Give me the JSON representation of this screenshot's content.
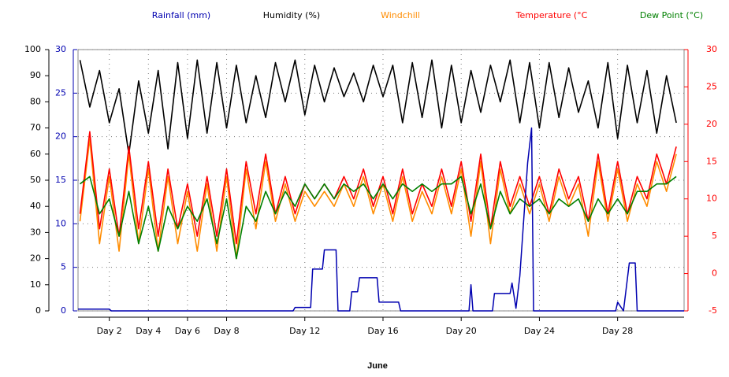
{
  "chart_data": {
    "type": "line",
    "xlabel": "June",
    "x": [
      0.5,
      1,
      1.5,
      2,
      2.5,
      3,
      3.5,
      4,
      4.5,
      5,
      5.5,
      6,
      6.5,
      7,
      7.5,
      8,
      8.5,
      9,
      9.5,
      10,
      10.5,
      11,
      11.5,
      12,
      12.5,
      13,
      13.5,
      14,
      14.5,
      15,
      15.5,
      16,
      16.5,
      17,
      17.5,
      18,
      18.5,
      19,
      19.5,
      20,
      20.5,
      21,
      21.5,
      22,
      22.5,
      23,
      23.5,
      24,
      24.5,
      25,
      25.5,
      26,
      26.5,
      27,
      27.5,
      28,
      28.5,
      29,
      29.5,
      30,
      30.5,
      31
    ],
    "xlim": [
      0.4,
      31.4
    ],
    "xticks": [
      {
        "value": 2,
        "label": "Day 2"
      },
      {
        "value": 4,
        "label": "Day 4"
      },
      {
        "value": 6,
        "label": "Day 6"
      },
      {
        "value": 8,
        "label": "Day 8"
      },
      {
        "value": 12,
        "label": "Day 12"
      },
      {
        "value": 16,
        "label": "Day 16"
      },
      {
        "value": 20,
        "label": "Day 20"
      },
      {
        "value": 24,
        "label": "Day 24"
      },
      {
        "value": 28,
        "label": "Day 28"
      }
    ],
    "ylim": [
      0,
      100
    ],
    "yticks": [
      0,
      10,
      20,
      30,
      40,
      50,
      60,
      70,
      80,
      90,
      100
    ],
    "y2lim": [
      -5,
      30
    ],
    "y2ticks": [
      -5,
      0,
      5,
      10,
      15,
      20,
      25,
      30
    ],
    "y3lim": [
      0,
      30
    ],
    "y3ticks": [
      0,
      5,
      10,
      15,
      20,
      25,
      30
    ],
    "grid": true,
    "series": [
      {
        "name": "Rainfall (mm)",
        "color": "#0000b0",
        "axis": "y3",
        "x": [
          0.4,
          2.0,
          2.1,
          11.4,
          11.5,
          12.3,
          12.4,
          12.9,
          13.0,
          13.6,
          13.7,
          14.3,
          14.4,
          14.7,
          14.8,
          15.7,
          15.8,
          16.8,
          16.9,
          20.4,
          20.5,
          20.6,
          21.6,
          21.7,
          22.5,
          22.6,
          22.8,
          23.0,
          23.4,
          23.6,
          23.7,
          27.9,
          28.0,
          28.3,
          28.6,
          28.9,
          29.0,
          31.4
        ],
        "values": [
          0.2,
          0.2,
          0,
          0,
          0.4,
          0.4,
          4.8,
          4.8,
          7,
          7,
          0,
          0,
          2.2,
          2.2,
          3.8,
          3.8,
          1,
          1,
          0,
          0,
          3,
          0,
          0,
          2,
          2,
          3.2,
          0.3,
          4,
          17,
          21,
          0,
          0,
          1,
          0,
          5.5,
          5.5,
          0,
          0
        ]
      },
      {
        "name": "Humidity (%)",
        "color": "#000000",
        "axis": "y",
        "values": [
          96,
          78,
          92,
          72,
          85,
          60,
          88,
          68,
          92,
          62,
          95,
          66,
          96,
          68,
          95,
          70,
          94,
          72,
          90,
          74,
          95,
          80,
          96,
          75,
          94,
          80,
          93,
          82,
          91,
          80,
          94,
          82,
          94,
          72,
          95,
          74,
          96,
          70,
          94,
          72,
          92,
          76,
          94,
          80,
          96,
          72,
          95,
          70,
          95,
          74,
          93,
          76,
          88,
          70,
          95,
          66,
          94,
          72,
          92,
          68,
          90,
          72
        ]
      },
      {
        "name": "Windchill",
        "color": "#ff8c00",
        "axis": "y2",
        "values": [
          7,
          18,
          4,
          13,
          3,
          16,
          4,
          14,
          3,
          13,
          4,
          11,
          3,
          12,
          3,
          13,
          2,
          14,
          6,
          15,
          7,
          12,
          7,
          11,
          9,
          11,
          9,
          12,
          9,
          13,
          8,
          12,
          7,
          13,
          7,
          11,
          8,
          13,
          8,
          14,
          5,
          15,
          4,
          14,
          8,
          12,
          8,
          12,
          7,
          13,
          9,
          12,
          5,
          15,
          7,
          14,
          7,
          12,
          9,
          15,
          11,
          16
        ]
      },
      {
        "name": "Temperature (°C",
        "color": "#ff0000",
        "axis": "y2",
        "values": [
          8,
          19,
          6,
          14,
          5,
          17,
          6,
          15,
          5,
          14,
          6,
          12,
          5,
          13,
          5,
          14,
          4,
          15,
          8,
          16,
          8,
          13,
          8,
          12,
          10,
          12,
          10,
          13,
          10,
          14,
          9,
          13,
          8,
          14,
          8,
          12,
          9,
          14,
          9,
          15,
          7,
          16,
          6,
          15,
          9,
          13,
          9,
          13,
          8,
          14,
          10,
          13,
          7,
          16,
          8,
          15,
          8,
          13,
          10,
          16,
          12,
          17
        ]
      },
      {
        "name": "Dew Point (°C)",
        "color": "#008000",
        "axis": "y2",
        "values": [
          12,
          13,
          8,
          10,
          5,
          11,
          4,
          9,
          3,
          9,
          6,
          9,
          7,
          10,
          4,
          10,
          2,
          9,
          7,
          11,
          8,
          11,
          9,
          12,
          10,
          12,
          10,
          12,
          11,
          12,
          10,
          12,
          10,
          12,
          11,
          12,
          11,
          12,
          12,
          13,
          8,
          12,
          6,
          11,
          8,
          10,
          9,
          10,
          8,
          10,
          9,
          10,
          7,
          10,
          8,
          10,
          8,
          11,
          11,
          12,
          12,
          13
        ]
      }
    ]
  }
}
